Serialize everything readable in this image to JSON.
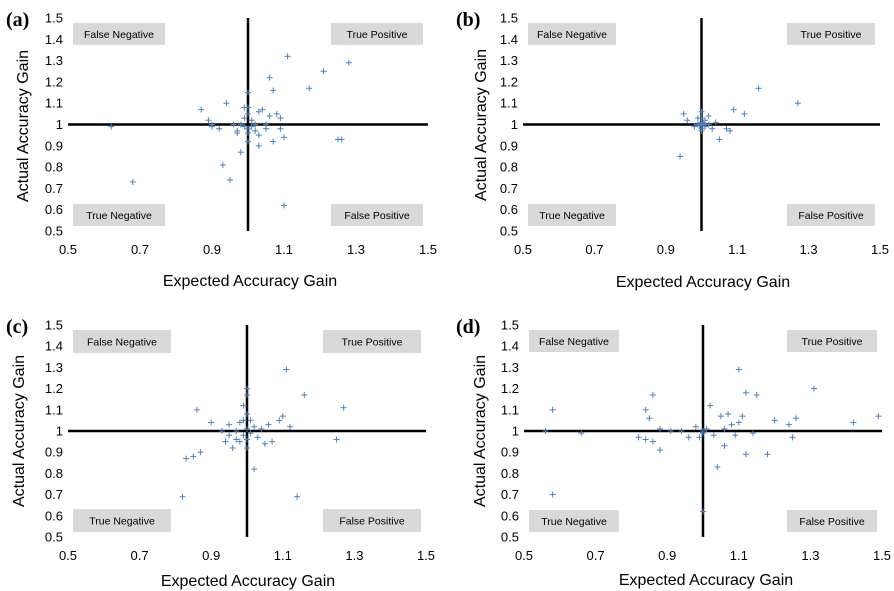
{
  "chart_data": [
    {
      "type": "scatter",
      "panel_label": "(a)",
      "xlabel": "Expected Accuracy Gain",
      "ylabel": "Actual Accuracy Gain",
      "xlim": [
        0.5,
        1.5
      ],
      "ylim": [
        0.5,
        1.5
      ],
      "xticks": [
        "0.5",
        "0.7",
        "0.9",
        "1.1",
        "1.3",
        "1.5"
      ],
      "yticks": [
        "0.5",
        "0.6",
        "0.7",
        "0.8",
        "0.9",
        "1",
        "1.1",
        "1.2",
        "1.3",
        "1.4",
        "1.5"
      ],
      "reference_lines": {
        "x": 1.0,
        "y": 1.0
      },
      "quadrants": {
        "top_left": "False Negative",
        "top_right": "True Positive",
        "bottom_left": "True Negative",
        "bottom_right": "False Positive"
      },
      "points": [
        [
          0.62,
          0.99
        ],
        [
          0.68,
          0.73
        ],
        [
          0.87,
          1.07
        ],
        [
          0.89,
          1.02
        ],
        [
          0.9,
          1.0
        ],
        [
          0.9,
          0.99
        ],
        [
          0.92,
          0.98
        ],
        [
          0.93,
          0.81
        ],
        [
          0.94,
          1.1
        ],
        [
          0.95,
          0.74
        ],
        [
          0.96,
          1.0
        ],
        [
          0.97,
          0.97
        ],
        [
          0.97,
          0.96
        ],
        [
          0.98,
          0.87
        ],
        [
          0.98,
          1.0
        ],
        [
          0.99,
          0.99
        ],
        [
          0.99,
          1.03
        ],
        [
          1.0,
          1.15
        ],
        [
          1.0,
          1.08
        ],
        [
          1.0,
          1.05
        ],
        [
          1.0,
          0.98
        ],
        [
          1.0,
          0.96
        ],
        [
          1.0,
          0.92
        ],
        [
          1.01,
          1.02
        ],
        [
          1.01,
          0.99
        ],
        [
          1.02,
          1.0
        ],
        [
          1.02,
          0.97
        ],
        [
          1.03,
          0.95
        ],
        [
          1.03,
          1.06
        ],
        [
          1.03,
          0.9
        ],
        [
          1.04,
          1.07
        ],
        [
          1.05,
          1.0
        ],
        [
          1.05,
          0.98
        ],
        [
          1.06,
          1.22
        ],
        [
          1.06,
          1.04
        ],
        [
          1.07,
          0.92
        ],
        [
          1.07,
          1.16
        ],
        [
          1.08,
          1.05
        ],
        [
          1.09,
          0.98
        ],
        [
          1.09,
          1.03
        ],
        [
          1.1,
          0.62
        ],
        [
          1.11,
          1.32
        ],
        [
          1.17,
          1.17
        ],
        [
          1.21,
          1.25
        ],
        [
          1.25,
          0.93
        ],
        [
          1.26,
          0.93
        ],
        [
          1.28,
          1.29
        ],
        [
          1.1,
          0.94
        ],
        [
          0.99,
          1.08
        ]
      ]
    },
    {
      "type": "scatter",
      "panel_label": "(b)",
      "xlabel": "Expected Accuracy Gain",
      "ylabel": "Actual Accuracy Gain",
      "xlim": [
        0.5,
        1.5
      ],
      "ylim": [
        0.5,
        1.5
      ],
      "xticks": [
        "0.5",
        "0.7",
        "0.9",
        "1.1",
        "1.3",
        "1.5"
      ],
      "yticks": [
        "0.5",
        "0.6",
        "0.7",
        "0.8",
        "0.9",
        "1",
        "1.1",
        "1.2",
        "1.3",
        "1.4",
        "1.5"
      ],
      "reference_lines": {
        "x": 1.0,
        "y": 1.0
      },
      "quadrants": {
        "top_left": "False Negative",
        "top_right": "True Positive",
        "bottom_left": "True Negative",
        "bottom_right": "False Positive"
      },
      "points": [
        [
          0.94,
          0.85
        ],
        [
          0.95,
          1.05
        ],
        [
          0.96,
          1.02
        ],
        [
          0.98,
          0.99
        ],
        [
          0.99,
          1.0
        ],
        [
          0.99,
          1.03
        ],
        [
          1.0,
          1.01
        ],
        [
          1.0,
          0.98
        ],
        [
          1.0,
          1.06
        ],
        [
          1.0,
          0.97
        ],
        [
          1.01,
          1.0
        ],
        [
          1.01,
          1.02
        ],
        [
          1.01,
          0.99
        ],
        [
          1.02,
          1.0
        ],
        [
          1.02,
          1.04
        ],
        [
          1.03,
          0.98
        ],
        [
          1.04,
          1.01
        ],
        [
          1.05,
          0.93
        ],
        [
          1.07,
          0.98
        ],
        [
          1.08,
          0.97
        ],
        [
          1.09,
          1.07
        ],
        [
          1.12,
          1.05
        ],
        [
          1.16,
          1.17
        ],
        [
          1.27,
          1.1
        ],
        [
          1.0,
          1.0
        ],
        [
          0.995,
          0.995
        ],
        [
          1.005,
          1.005
        ],
        [
          1.0,
          1.03
        ]
      ]
    },
    {
      "type": "scatter",
      "panel_label": "(c)",
      "xlabel": "Expected Accuracy Gain",
      "ylabel": "Actual Accuracy Gain",
      "xlim": [
        0.5,
        1.5
      ],
      "ylim": [
        0.5,
        1.5
      ],
      "xticks": [
        "0.5",
        "0.7",
        "0.9",
        "1.1",
        "1.3",
        "1.5"
      ],
      "yticks": [
        "0.5",
        "0.6",
        "0.7",
        "0.8",
        "0.9",
        "1",
        "1.1",
        "1.2",
        "1.3",
        "1.4",
        "1.5"
      ],
      "reference_lines": {
        "x": 1.0,
        "y": 1.0
      },
      "quadrants": {
        "top_left": "False Negative",
        "top_right": "True Positive",
        "bottom_left": "True Negative",
        "bottom_right": "False Positive"
      },
      "points": [
        [
          0.82,
          0.69
        ],
        [
          0.83,
          0.87
        ],
        [
          0.85,
          0.88
        ],
        [
          0.86,
          1.1
        ],
        [
          0.87,
          0.9
        ],
        [
          0.9,
          1.04
        ],
        [
          0.93,
          1.0
        ],
        [
          0.94,
          0.95
        ],
        [
          0.95,
          0.98
        ],
        [
          0.95,
          1.03
        ],
        [
          0.96,
          0.92
        ],
        [
          0.97,
          1.0
        ],
        [
          0.97,
          0.96
        ],
        [
          0.98,
          0.95
        ],
        [
          0.98,
          1.04
        ],
        [
          0.99,
          0.98
        ],
        [
          0.99,
          1.12
        ],
        [
          1.0,
          1.17
        ],
        [
          1.0,
          1.08
        ],
        [
          1.0,
          1.01
        ],
        [
          1.0,
          0.96
        ],
        [
          1.0,
          0.92
        ],
        [
          1.01,
          1.05
        ],
        [
          1.01,
          0.99
        ],
        [
          1.02,
          0.82
        ],
        [
          1.02,
          1.02
        ],
        [
          1.03,
          0.97
        ],
        [
          1.04,
          1.01
        ],
        [
          1.05,
          0.94
        ],
        [
          1.06,
          1.03
        ],
        [
          1.07,
          0.95
        ],
        [
          1.09,
          1.05
        ],
        [
          1.1,
          1.07
        ],
        [
          1.11,
          1.29
        ],
        [
          1.12,
          1.02
        ],
        [
          1.14,
          0.69
        ],
        [
          1.16,
          1.17
        ],
        [
          1.25,
          0.96
        ],
        [
          1.27,
          1.11
        ],
        [
          1.0,
          1.2
        ],
        [
          0.99,
          1.05
        ]
      ]
    },
    {
      "type": "scatter",
      "panel_label": "(d)",
      "xlabel": "Expected Accuracy Gain",
      "ylabel": "Actual Accuracy Gain",
      "xlim": [
        0.5,
        1.5
      ],
      "ylim": [
        0.5,
        1.5
      ],
      "xticks": [
        "0.5",
        "0.7",
        "0.9",
        "1.1",
        "1.3",
        "1.5"
      ],
      "yticks": [
        "0.5",
        "0.6",
        "0.7",
        "0.8",
        "0.9",
        "1",
        "1.1",
        "1.2",
        "1.3",
        "1.4",
        "1.5"
      ],
      "reference_lines": {
        "x": 1.0,
        "y": 1.0
      },
      "quadrants": {
        "top_left": "False Negative",
        "top_right": "True Positive",
        "bottom_left": "True Negative",
        "bottom_right": "False Positive"
      },
      "points": [
        [
          0.56,
          1.0
        ],
        [
          0.58,
          1.1
        ],
        [
          0.58,
          0.7
        ],
        [
          0.66,
          0.99
        ],
        [
          0.82,
          0.97
        ],
        [
          0.84,
          0.96
        ],
        [
          0.84,
          1.1
        ],
        [
          0.85,
          1.06
        ],
        [
          0.86,
          0.95
        ],
        [
          0.86,
          1.17
        ],
        [
          0.88,
          0.91
        ],
        [
          0.88,
          1.01
        ],
        [
          0.91,
          1.0
        ],
        [
          0.94,
          1.0
        ],
        [
          0.96,
          0.97
        ],
        [
          0.98,
          1.02
        ],
        [
          0.99,
          0.97
        ],
        [
          1.0,
          0.99
        ],
        [
          1.0,
          0.62
        ],
        [
          1.01,
          1.01
        ],
        [
          1.02,
          1.12
        ],
        [
          1.03,
          0.98
        ],
        [
          1.04,
          0.83
        ],
        [
          1.05,
          1.07
        ],
        [
          1.06,
          1.01
        ],
        [
          1.07,
          1.08
        ],
        [
          1.08,
          1.03
        ],
        [
          1.09,
          0.98
        ],
        [
          1.1,
          1.29
        ],
        [
          1.1,
          1.04
        ],
        [
          1.11,
          1.07
        ],
        [
          1.12,
          1.18
        ],
        [
          1.12,
          0.89
        ],
        [
          1.14,
          0.99
        ],
        [
          1.15,
          1.17
        ],
        [
          1.18,
          0.89
        ],
        [
          1.2,
          1.05
        ],
        [
          1.24,
          1.03
        ],
        [
          1.25,
          0.97
        ],
        [
          1.26,
          1.06
        ],
        [
          1.31,
          1.2
        ],
        [
          1.42,
          1.04
        ],
        [
          1.49,
          1.07
        ],
        [
          1.06,
          0.93
        ],
        [
          1.0,
          1.0
        ]
      ]
    }
  ]
}
